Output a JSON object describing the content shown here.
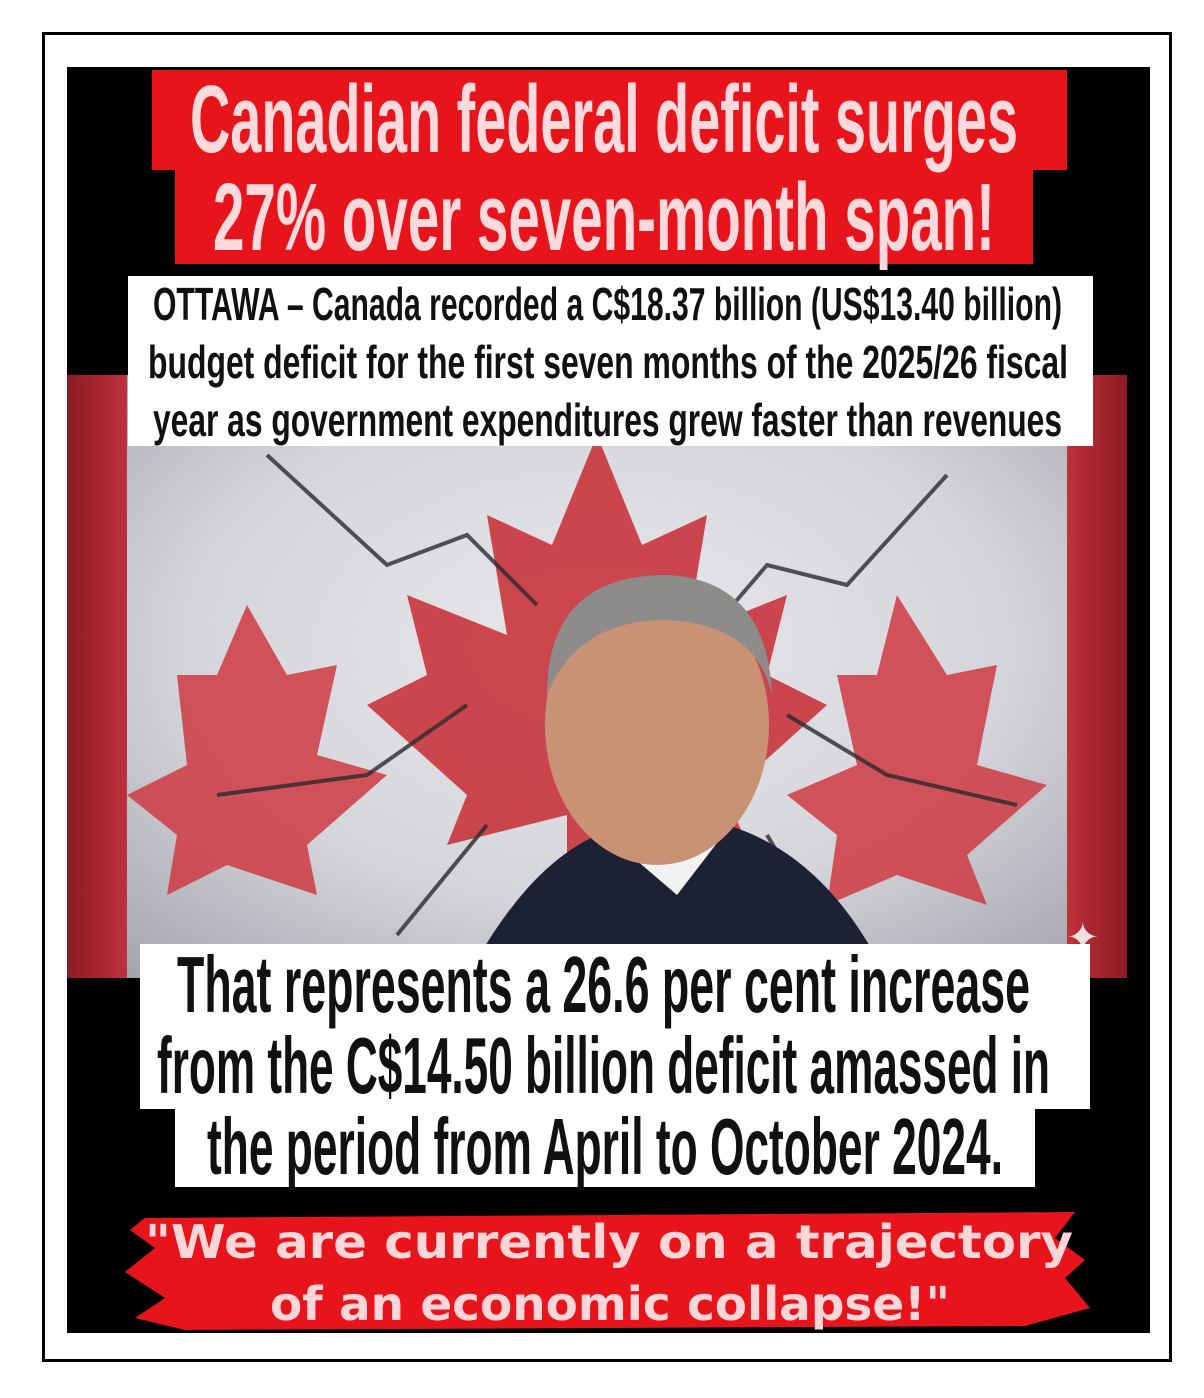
{
  "headline": {
    "line1": "Canadian federal deficit surges",
    "line2": "27% over seven-month span!"
  },
  "intro": {
    "line1": "OTTAWA – Canada recorded a C$18.37 billion (US$13.40 billion)",
    "line2": "budget deficit for the first seven months of the 2025/26 fiscal",
    "line3": "year as government expenditures grew faster than revenues"
  },
  "detail": {
    "line1": "That represents a 26.6 per cent increase",
    "line2": "from the C$14.50 billion deficit amassed in",
    "line3": "the period from April to October 2024."
  },
  "quote": {
    "line1": "\"We are currently on a trajectory",
    "line2": "of an economic collapse!\""
  },
  "colors": {
    "headline_red": "#e8141b",
    "flag_red": "#c0313a",
    "text_pink": "#ffd9dc"
  },
  "icons": {
    "sparkle": "sparkle-icon"
  }
}
